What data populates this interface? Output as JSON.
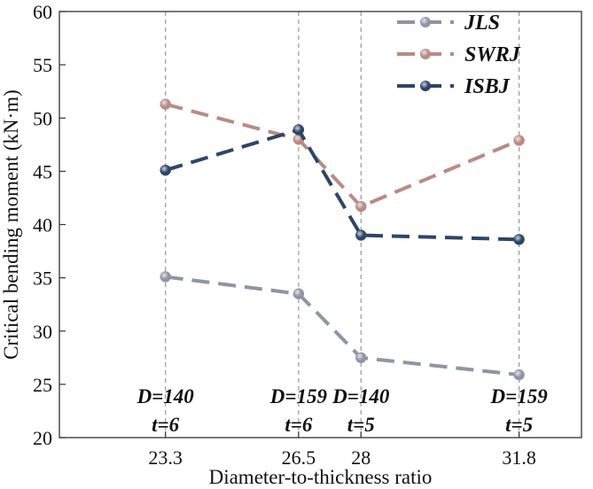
{
  "chart_data": {
    "type": "line",
    "xlabel": "Diameter-to-thickness ratio",
    "ylabel": "Critical bending moment (kN·m)",
    "x": [
      23.3,
      26.5,
      28,
      31.8
    ],
    "x_tick_labels": [
      "23.3",
      "26.5",
      "28",
      "31.8"
    ],
    "xlim": [
      20.75,
      33.3
    ],
    "ylim": [
      20,
      60
    ],
    "y_ticks": [
      20,
      25,
      30,
      35,
      40,
      45,
      50,
      55,
      60
    ],
    "vertical_gridlines": true,
    "legend_position": "top-right",
    "series": [
      {
        "name": "JLS",
        "color": "#8e95a3",
        "values": [
          35.1,
          33.5,
          27.5,
          25.9
        ]
      },
      {
        "name": "SWRJ",
        "color": "#b98b85",
        "values": [
          51.3,
          48.0,
          41.7,
          47.9
        ]
      },
      {
        "name": "ISBJ",
        "color": "#2d4567",
        "values": [
          45.1,
          48.9,
          39.0,
          38.6
        ]
      }
    ],
    "annotations": [
      {
        "x": 23.3,
        "line1": "D=140",
        "line2": "t=6"
      },
      {
        "x": 26.5,
        "line1": "D=159",
        "line2": "t=6"
      },
      {
        "x": 28,
        "line1": "D=140",
        "line2": "t=5"
      },
      {
        "x": 31.8,
        "line1": "D=159",
        "line2": "t=5"
      }
    ]
  }
}
